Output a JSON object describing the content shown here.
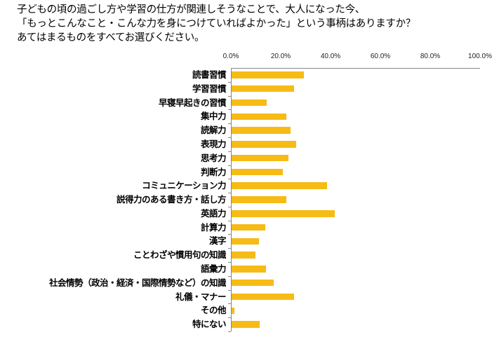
{
  "title": {
    "lines": [
      "子どもの頃の過ごし方や学習の仕方が関連しそうなことで、大人になった今、",
      "「もっとこんなこと・こんな力を身につけていればよかった」という事柄はありますか？",
      "あてはまるものをすべてお選びください。"
    ]
  },
  "colors": {
    "bar": "#F6BB15",
    "axis": "#868686"
  },
  "chart_data": {
    "type": "bar",
    "orientation": "horizontal",
    "title": "子どもの頃の過ごし方や学習の仕方が関連しそうなことで、大人になった今、「もっとこんなこと・こんな力を身につけていればよかった」という事柄はありますか？あてはまるものをすべてお選びください。",
    "xlabel": "",
    "ylabel": "",
    "xlim": [
      0,
      100
    ],
    "x_ticks": [
      "0.0%",
      "20.0%",
      "40.0%",
      "60.0%",
      "80.0%",
      "100.0%"
    ],
    "x_axis_position": "top",
    "grid": false,
    "legend": null,
    "categories": [
      "読書習慣",
      "学習習慣",
      "早寝早起きの習慣",
      "集中力",
      "読解力",
      "表現力",
      "思考力",
      "判断力",
      "コミュニケーション力",
      "説得力のある書き方・話し方",
      "英語力",
      "計算力",
      "漢字",
      "ことわざや慣用句の知識",
      "語彙力",
      "社会情勢（政治・経済・国際情勢など）の知識",
      "礼儀・マナー",
      "その他",
      "特にない"
    ],
    "values": [
      29.1,
      25.2,
      14.2,
      21.9,
      23.8,
      26.0,
      22.7,
      20.6,
      38.2,
      21.9,
      41.3,
      13.4,
      11.1,
      9.7,
      13.7,
      16.8,
      25.0,
      1.0,
      11.4
    ],
    "unit": "%"
  }
}
